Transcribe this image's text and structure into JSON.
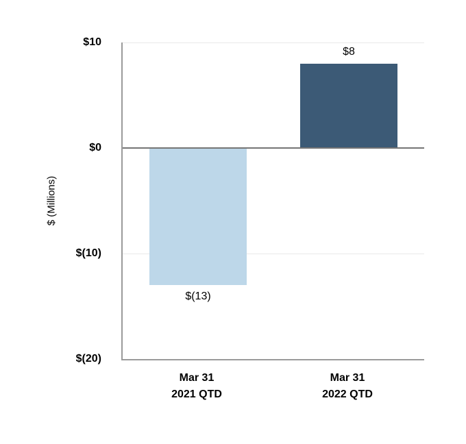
{
  "chart_data": {
    "type": "bar",
    "title": "",
    "xlabel": "",
    "ylabel": "$ (Millions)",
    "ylim": [
      -20,
      10
    ],
    "grid": "horizontal",
    "legend": "none",
    "yticks": [
      {
        "value": 10,
        "label": "$10"
      },
      {
        "value": 0,
        "label": "$0"
      },
      {
        "value": -10,
        "label": "$(10)"
      },
      {
        "value": -20,
        "label": "$(20)"
      }
    ],
    "categories": [
      {
        "line1": "Mar 31",
        "line2": "2021 QTD"
      },
      {
        "line1": "Mar 31",
        "line2": "2022 QTD"
      }
    ],
    "series": [
      {
        "values": [
          -13,
          8
        ],
        "data_labels": [
          "$(13)",
          "$8"
        ],
        "bar_colors": [
          "#bdd7e9",
          "#3c5a76"
        ]
      }
    ]
  },
  "colors": {
    "background": "#ffffff",
    "bar_2021_qtd": "#bdd7e9",
    "bar_2022_qtd": "#3c5a76",
    "gridline": "#e9e9e9",
    "axis_line": "#9a9a9a",
    "zero_line": "#757575",
    "text": "#000000"
  }
}
